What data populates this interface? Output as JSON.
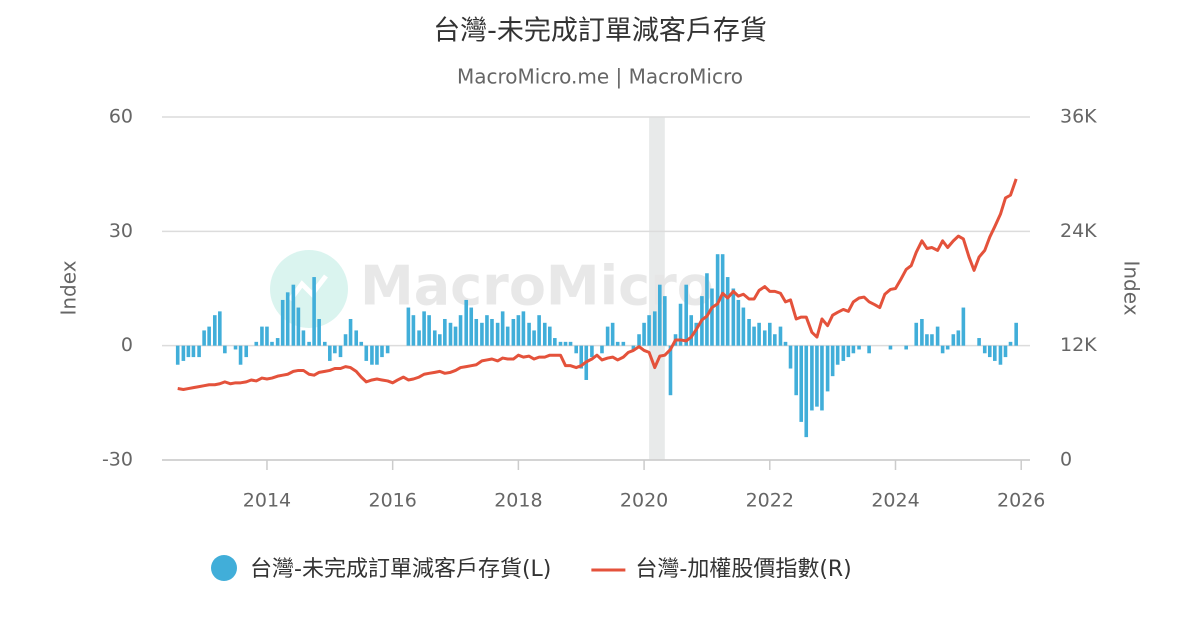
{
  "chart_data": {
    "type": "bar_line",
    "title": "台灣-未完成訂單減客戶存貨",
    "subtitle": "MacroMicro.me | MacroMicro",
    "watermark": "MacroMicro",
    "y_label": "Index",
    "y2_label": "Index",
    "xlim": [
      2012.33,
      2026.14
    ],
    "xticks": [
      2014,
      2016,
      2018,
      2020,
      2022,
      2024,
      2026
    ],
    "ylim": [
      -30,
      60
    ],
    "yticks": [
      -30,
      0,
      30,
      60
    ],
    "y2lim": [
      0,
      36000
    ],
    "y2ticks": [
      {
        "value": 0,
        "label": "0"
      },
      {
        "value": 12000,
        "label": "12K"
      },
      {
        "value": 24000,
        "label": "24K"
      },
      {
        "value": 36000,
        "label": "36K"
      }
    ],
    "grid": true,
    "legend": "bottom",
    "shaded_regions": [
      {
        "start": 2020.08,
        "end": 2020.33,
        "color": "#e8eaea"
      }
    ],
    "x": [
      2012.58,
      2012.67,
      2012.75,
      2012.83,
      2012.92,
      2013,
      2013.08,
      2013.17,
      2013.25,
      2013.33,
      2013.42,
      2013.5,
      2013.58,
      2013.67,
      2013.75,
      2013.83,
      2013.92,
      2014,
      2014.08,
      2014.17,
      2014.25,
      2014.33,
      2014.42,
      2014.5,
      2014.58,
      2014.67,
      2014.75,
      2014.83,
      2014.92,
      2015,
      2015.08,
      2015.17,
      2015.25,
      2015.33,
      2015.42,
      2015.5,
      2015.58,
      2015.67,
      2015.75,
      2015.83,
      2015.92,
      2016,
      2016.08,
      2016.17,
      2016.25,
      2016.33,
      2016.42,
      2016.5,
      2016.58,
      2016.67,
      2016.75,
      2016.83,
      2016.92,
      2017,
      2017.08,
      2017.17,
      2017.25,
      2017.33,
      2017.42,
      2017.5,
      2017.58,
      2017.67,
      2017.75,
      2017.83,
      2017.92,
      2018,
      2018.08,
      2018.17,
      2018.25,
      2018.33,
      2018.42,
      2018.5,
      2018.58,
      2018.67,
      2018.75,
      2018.83,
      2018.92,
      2019,
      2019.08,
      2019.17,
      2019.25,
      2019.33,
      2019.42,
      2019.5,
      2019.58,
      2019.67,
      2019.75,
      2019.83,
      2019.92,
      2020,
      2020.08,
      2020.17,
      2020.25,
      2020.33,
      2020.42,
      2020.5,
      2020.58,
      2020.67,
      2020.75,
      2020.83,
      2020.92,
      2021,
      2021.08,
      2021.17,
      2021.25,
      2021.33,
      2021.42,
      2021.5,
      2021.58,
      2021.67,
      2021.75,
      2021.83,
      2021.92,
      2022,
      2022.08,
      2022.17,
      2022.25,
      2022.33,
      2022.42,
      2022.5,
      2022.58,
      2022.67,
      2022.75,
      2022.83,
      2022.92,
      2023,
      2023.08,
      2023.17,
      2023.25,
      2023.33,
      2023.42,
      2023.5,
      2023.58,
      2023.67,
      2023.75,
      2023.83,
      2023.92,
      2024,
      2024.08,
      2024.17,
      2024.25,
      2024.33,
      2024.42,
      2024.5,
      2024.58,
      2024.67,
      2024.75,
      2024.83,
      2024.92,
      2025,
      2025.08,
      2025.17,
      2025.25,
      2025.33,
      2025.42,
      2025.5,
      2025.58,
      2025.67,
      2025.75,
      2025.83,
      2025.92
    ],
    "series": [
      {
        "name": "台灣-未完成訂單減客戶存貨(L)",
        "color": "#41aed9",
        "type": "bar",
        "axis": "y",
        "values": [
          -5,
          -4,
          -3,
          -3,
          -3,
          4,
          5,
          8,
          9,
          -2,
          0,
          -1,
          -5,
          -3,
          0,
          1,
          5,
          5,
          1,
          2,
          12,
          14,
          16,
          10,
          4,
          1,
          18,
          7,
          1,
          -4,
          -2,
          -3,
          3,
          7,
          4,
          1,
          -4,
          -5,
          -5,
          -3,
          -2,
          0,
          0,
          0,
          10,
          8,
          4,
          9,
          8,
          4,
          3,
          7,
          6,
          5,
          8,
          12,
          10,
          7,
          6,
          8,
          7,
          6,
          9,
          5,
          7,
          8,
          9,
          6,
          4,
          8,
          6,
          5,
          2,
          1,
          1,
          1,
          -2,
          -6,
          -9,
          -3,
          0,
          -2,
          5,
          6,
          1,
          1,
          0,
          -1,
          3,
          6,
          8,
          9,
          16,
          13,
          -13,
          3,
          11,
          16,
          8,
          6,
          13,
          19,
          15,
          24,
          24,
          18,
          15,
          12,
          10,
          7,
          5,
          6,
          4,
          6,
          3,
          5,
          1,
          -6,
          -13,
          -20,
          -24,
          -17,
          -16,
          -17,
          -12,
          -8,
          -5,
          -4,
          -3,
          -2,
          -1,
          0,
          -2,
          0,
          0,
          0,
          -1,
          0,
          0,
          -1,
          0,
          6,
          7,
          3,
          3,
          5,
          -2,
          -1,
          3,
          4,
          10,
          0,
          0,
          2,
          -2,
          -3,
          -4,
          -5,
          -3,
          1,
          6
        ]
      },
      {
        "name": "台灣-加權股價指數(R)",
        "color": "#e4523b",
        "type": "line",
        "axis": "y2",
        "values": [
          7500,
          7400,
          7500,
          7600,
          7700,
          7800,
          7900,
          7900,
          8000,
          8200,
          8000,
          8100,
          8100,
          8200,
          8400,
          8300,
          8600,
          8500,
          8600,
          8800,
          8900,
          9000,
          9300,
          9400,
          9400,
          9000,
          8900,
          9200,
          9300,
          9400,
          9600,
          9600,
          9800,
          9700,
          9300,
          8700,
          8200,
          8400,
          8500,
          8400,
          8300,
          8100,
          8400,
          8700,
          8400,
          8500,
          8700,
          9000,
          9100,
          9200,
          9300,
          9100,
          9200,
          9400,
          9700,
          9800,
          9900,
          10000,
          10400,
          10500,
          10600,
          10400,
          10700,
          10600,
          10600,
          11000,
          10800,
          10900,
          10600,
          10800,
          10800,
          11000,
          11000,
          11000,
          9900,
          9900,
          9700,
          9900,
          10300,
          10600,
          11000,
          10500,
          10700,
          10800,
          10500,
          10800,
          11300,
          11500,
          11900,
          11500,
          11300,
          9700,
          10900,
          11000,
          11600,
          12600,
          12600,
          12500,
          12900,
          13700,
          14700,
          15100,
          16000,
          16400,
          17500,
          17000,
          17700,
          17200,
          17400,
          16900,
          16900,
          17800,
          18200,
          17700,
          17700,
          17500,
          16600,
          16800,
          14800,
          15000,
          15000,
          13400,
          12900,
          14800,
          14100,
          15200,
          15500,
          15800,
          15600,
          16600,
          17000,
          17100,
          16600,
          16300,
          16000,
          17400,
          17900,
          18000,
          18900,
          20000,
          20400,
          21800,
          23000,
          22200,
          22300,
          22000,
          23000,
          22300,
          23000,
          23500,
          23200,
          21300,
          19900,
          21300,
          22000,
          23400,
          24500,
          25800,
          27500,
          27800,
          29500
        ]
      }
    ]
  }
}
